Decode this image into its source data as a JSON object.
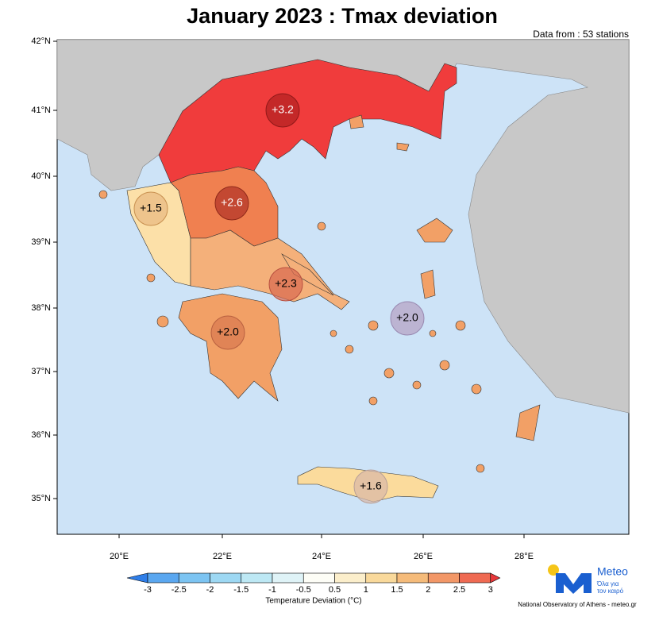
{
  "header": {
    "title": "January 2023 : Tmax deviation",
    "source": "Data from : 53 stations"
  },
  "map": {
    "lat_labels": [
      "42°N",
      "41°N",
      "40°N",
      "39°N",
      "38°N",
      "37°N",
      "36°N",
      "35°N"
    ],
    "lon_labels": [
      "20°E",
      "22°E",
      "24°E",
      "26°E",
      "28°E"
    ],
    "regions": [
      {
        "label": "+3.2"
      },
      {
        "label": "+1.5"
      },
      {
        "label": "+2.6"
      },
      {
        "label": "+2.3"
      },
      {
        "label": "+2.0"
      },
      {
        "label": "+2.0"
      },
      {
        "label": "+1.6"
      }
    ]
  },
  "legend": {
    "ticks": [
      "-3",
      "-2.5",
      "-2",
      "-1.5",
      "-1",
      "-0.5",
      "0.5",
      "1",
      "1.5",
      "2",
      "2.5",
      "3"
    ],
    "title": "Temperature Deviation (°C)"
  },
  "footer": {
    "brand": "Meteo",
    "tagline_1": "Όλα για",
    "tagline_2": "τον καιρό",
    "credit": "National Observatory of Athens - meteo.gr"
  }
}
